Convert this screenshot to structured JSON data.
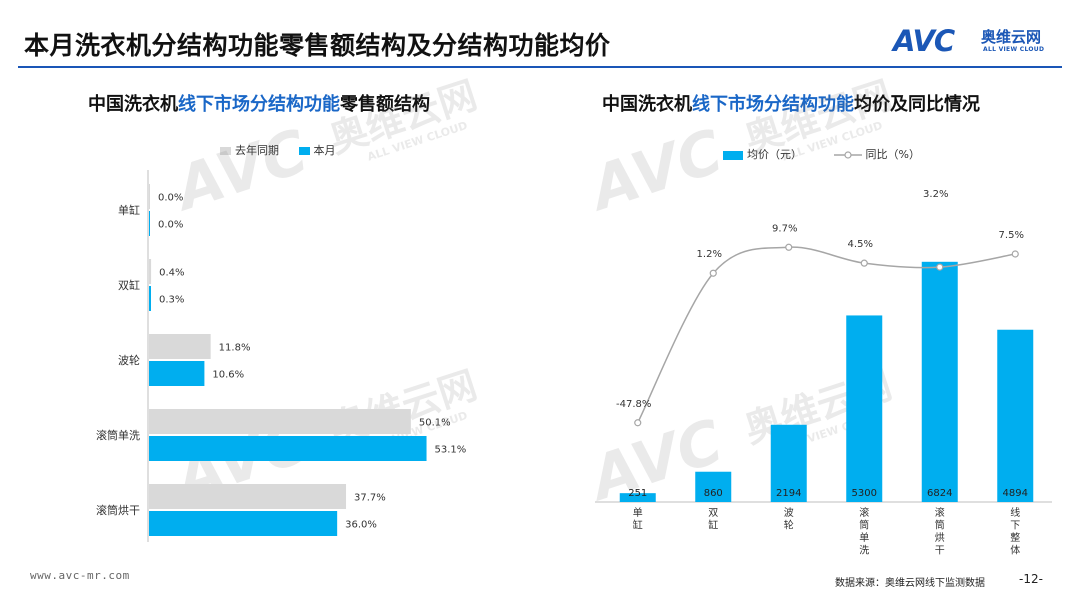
{
  "header": {
    "title": "本月洗衣机分结构功能零售额结构及分结构功能均价",
    "logo": {
      "mark": "AVC",
      "name_cn": "奥维云网",
      "name_en": "ALL VIEW CLOUD"
    }
  },
  "left_panel": {
    "title_pre": "中国洗衣机",
    "title_hl": "线下市场分结构功能",
    "title_post": "零售额结构"
  },
  "right_panel": {
    "title_pre": "中国洗衣机",
    "title_hl": "线下市场分结构功能",
    "title_post": "均价及同比情况"
  },
  "chart_data": [
    {
      "type": "bar",
      "orientation": "horizontal",
      "title": "中国洗衣机线下市场分结构功能零售额结构",
      "categories": [
        "单缸",
        "双缸",
        "波轮",
        "滚筒单洗",
        "滚筒烘干"
      ],
      "series": [
        {
          "name": "去年同期",
          "values": [
            0.0,
            0.4,
            11.8,
            50.1,
            37.7
          ],
          "labels": [
            "0.0%",
            "0.4%",
            "11.8%",
            "50.1%",
            "37.7%"
          ],
          "color": "#d9d9d9"
        },
        {
          "name": "本月",
          "values": [
            0.0,
            0.3,
            10.6,
            53.1,
            36.0
          ],
          "labels": [
            "0.0%",
            "0.3%",
            "10.6%",
            "53.1%",
            "36.0%"
          ],
          "color": "#00aeef"
        }
      ],
      "xlim": [
        0,
        60
      ],
      "unit": "%"
    },
    {
      "type": "bar",
      "title": "中国洗衣机线下市场分结构功能均价及同比情况",
      "categories": [
        "单缸",
        "双缸",
        "波轮",
        "滚筒单洗",
        "滚筒烘干",
        "线下整体"
      ],
      "series": [
        {
          "name": "均价（元）",
          "type": "bar",
          "values": [
            251,
            860,
            2194,
            5300,
            6824,
            4894
          ],
          "labels": [
            "251",
            "860",
            "2194",
            "5300",
            "6824",
            "4894"
          ],
          "color": "#00aeef"
        },
        {
          "name": "同比（%）",
          "type": "line",
          "values": [
            -47.8,
            1.2,
            9.7,
            4.5,
            3.2,
            7.5
          ],
          "labels": [
            "-47.8%",
            "1.2%",
            "9.7%",
            "4.5%",
            "3.2%",
            "7.5%"
          ],
          "color": "#a6a6a6"
        }
      ],
      "ylim": [
        0,
        7500
      ],
      "y2lim": [
        -60,
        17
      ]
    }
  ],
  "watermark": {
    "mark": "AVC",
    "name_cn": "奥维云网",
    "name_en": "ALL VIEW CLOUD"
  },
  "footer": {
    "url": "www.avc-mr.com",
    "source": "数据来源：奥维云网线下监测数据",
    "page": "-12-"
  }
}
